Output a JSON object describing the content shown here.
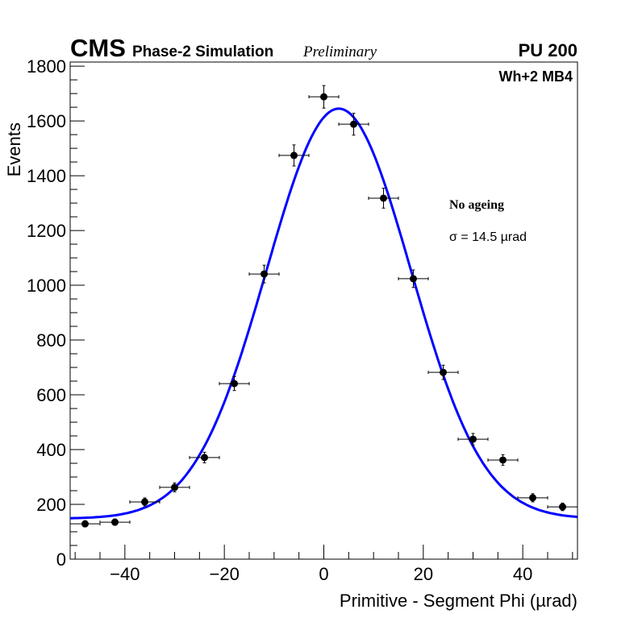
{
  "chart_data": {
    "type": "scatter",
    "title_left": "CMS",
    "title_sub": "Phase-2 Simulation",
    "title_status": "Preliminary",
    "title_right": "PU 200",
    "region_label": "Wh+2 MB4",
    "annotation_title": "No ageing",
    "annotation_sigma": "σ = 14.5  µrad",
    "xlabel": "Primitive - Segment Phi (µrad)",
    "ylabel": "Events",
    "xlim": [
      -51,
      51
    ],
    "ylim": [
      0,
      1815
    ],
    "xticks": [
      -40,
      -20,
      0,
      20,
      40
    ],
    "xtick_labels": [
      "−40",
      "−20",
      "0",
      "20",
      "40"
    ],
    "yticks": [
      0,
      200,
      400,
      600,
      800,
      1000,
      1200,
      1400,
      1600,
      1800
    ],
    "ytick_labels": [
      "0",
      "200",
      "400",
      "600",
      "800",
      "1000",
      "1200",
      "1400",
      "1600",
      "1800"
    ],
    "bin_width": 6,
    "x": [
      -48,
      -42,
      -36,
      -30,
      -24,
      -18,
      -12,
      -6,
      0,
      6,
      12,
      18,
      24,
      30,
      36,
      42,
      48
    ],
    "y": [
      129,
      135,
      209,
      262,
      371,
      641,
      1041,
      1474,
      1688,
      1588,
      1318,
      1024,
      682,
      438,
      362,
      224,
      191
    ],
    "fit": {
      "type": "gaussian+constant",
      "constant": 148,
      "amplitude": 1497,
      "mean": 3,
      "sigma": 14.5,
      "color": "#0000ff"
    },
    "marker_color": "#000000"
  }
}
